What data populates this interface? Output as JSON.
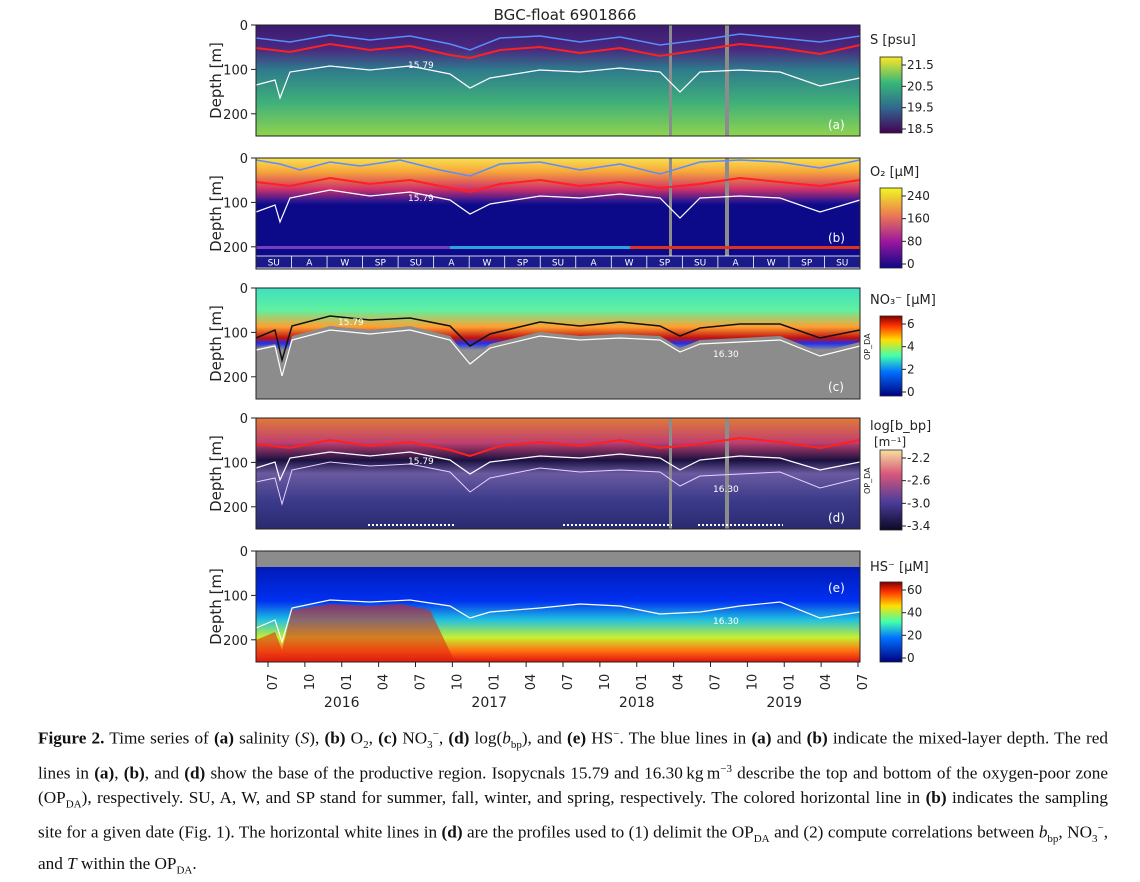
{
  "figure": {
    "title": "BGC-float 6901866",
    "y_axis_label": "Depth [m]",
    "y_ticks": [
      "0",
      "100",
      "200"
    ],
    "x_tick_labels": [
      "07",
      "10",
      "01",
      "04",
      "07",
      "10",
      "01",
      "04",
      "07",
      "10",
      "01",
      "04",
      "07",
      "10",
      "01",
      "04",
      "07"
    ],
    "year_labels": [
      "2016",
      "2017",
      "2018",
      "2019"
    ],
    "panels": [
      {
        "letter": "(a)",
        "cbar_title": "S [psu]",
        "cbar_ticks": [
          "21.5",
          "20.5",
          "19.5",
          "18.5"
        ],
        "isopycnal_labels": [
          "15.79"
        ]
      },
      {
        "letter": "(b)",
        "cbar_title": "O₂ [μM]",
        "cbar_ticks": [
          "240",
          "160",
          "80",
          "0"
        ],
        "isopycnal_labels": [
          "15.79"
        ],
        "season_labels": [
          "SU",
          "A",
          "W",
          "SP",
          "SU",
          "A",
          "W",
          "SP",
          "SU",
          "A",
          "W",
          "SP",
          "SU",
          "A",
          "W",
          "SP",
          "SU"
        ]
      },
      {
        "letter": "(c)",
        "cbar_title": "NO₃⁻ [μM]",
        "cbar_ticks": [
          "6",
          "4",
          "2",
          "0"
        ],
        "isopycnal_labels": [
          "15.79",
          "16.30"
        ],
        "side_label": "OP_DA"
      },
      {
        "letter": "(d)",
        "cbar_title": "log[b_bp]",
        "cbar_subtitle": "[m⁻¹]",
        "cbar_ticks": [
          "-2.2",
          "-2.6",
          "-3.0",
          "-3.4"
        ],
        "isopycnal_labels": [
          "15.79",
          "16.30"
        ],
        "side_label": "OP_DA"
      },
      {
        "letter": "(e)",
        "cbar_title": "HS⁻ [μM]",
        "cbar_ticks": [
          "60",
          "40",
          "20",
          "0"
        ],
        "isopycnal_labels": [
          "16.30"
        ]
      }
    ]
  },
  "caption": {
    "label": "Figure 2.",
    "t1": " Time series of ",
    "a": "(a)",
    "t2": " salinity (",
    "S": "S",
    "t3": "), ",
    "b": "(b)",
    "t4": " O",
    "o2sub": "2",
    "t5": ", ",
    "c": "(c)",
    "t6": " NO",
    "no3sub": "3",
    "no3sup": "−",
    "t7": ", ",
    "d": "(d)",
    "t8": " log(",
    "bbp": "b",
    "bbpsub": "bp",
    "t9": "), and ",
    "e": "(e)",
    "t10": " HS",
    "hssup": "−",
    "t11": ". The blue lines in ",
    "a2": "(a)",
    "t12": " and ",
    "b2": "(b)",
    "t13": " indicate the mixed-layer depth. The red lines in ",
    "a3": "(a)",
    "t14": ", ",
    "b3": "(b)",
    "t15": ", and ",
    "d2": "(d)",
    "t16": " show the base of the productive region. Isopycnals 15.79 and 16.30 kg m",
    "m3sup": "−3",
    "t17": " describe the top and bottom of the oxygen-poor zone (OP",
    "da1": "DA",
    "t18": "), respectively. SU, A, W, and SP stand for summer, fall, winter, and spring, respectively. The colored horizontal line in ",
    "b4": "(b)",
    "t19": " indicates the sampling site for a given date (Fig. 1). The horizontal white lines in ",
    "d3": "(d)",
    "t20": " are the profiles used to (1) delimit the OP",
    "da2": "DA",
    "t21": " and (2) compute correlations between ",
    "bbp2": "b",
    "bbpsub2": "bp",
    "t22": ", NO",
    "no3sub2": "3",
    "no3sup2": "−",
    "t23": ", and ",
    "T": "T",
    "t24": " within the OP",
    "da3": "DA",
    "t25": "."
  },
  "colors": {
    "mld": "#5a8cff",
    "productive_base": "#ff2020",
    "isopycnal": "#ffffff",
    "land_gray": "#8c8c8c"
  }
}
